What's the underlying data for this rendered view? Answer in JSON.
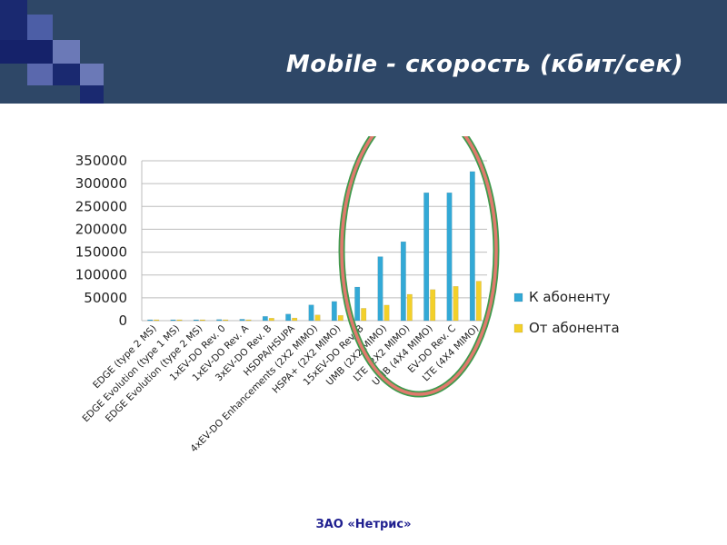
{
  "slide": {
    "title": "Mobile - скорость (кбит/сек)",
    "footer": "ЗАО «Нетрис»",
    "colors": {
      "header": "#2e4767",
      "accent": "#1f1f8f",
      "squares_dark": "#1a2970",
      "squares_light": "#6b79b7",
      "ellipse_outer": "#3f9a4d",
      "ellipse_inner": "#e07a6d"
    }
  },
  "chart_data": {
    "type": "bar",
    "title": "",
    "xlabel": "",
    "ylabel": "",
    "ylim": [
      0,
      350000
    ],
    "yticks": [
      "350000",
      "300000",
      "250000",
      "200000",
      "150000",
      "100000",
      "50000",
      "0"
    ],
    "grid": true,
    "legend_position": "right",
    "categories": [
      "EDGE (type 2 MS)",
      "EDGE Evolution (type 1 MS)",
      "EDGE Evolution (type 2 MS)",
      "1xEV-DO Rev. 0",
      "1xEV-DO Rev. A",
      "3xEV-DO Rev. B",
      "HSDPA/HSUPA",
      "4xEV-DO Enhancements (2X2 MIMO)",
      "HSPA+ (2X2 MIMO)",
      "15xEV-DO Rev. B",
      "UMB (2X2 MIMO)",
      "LTE (2X2 MIMO)",
      "UMB (4X4 MIMO)",
      "EV-DO Rev. C",
      "LTE (4X4 MIMO)"
    ],
    "series": [
      {
        "name": "К абоненту",
        "color": "#33a9d6",
        "values": [
          474,
          1184,
          1894,
          2458,
          3100,
          9300,
          14400,
          34400,
          42000,
          73500,
          140000,
          172800,
          280000,
          280000,
          326400
        ]
      },
      {
        "name": "От абонента",
        "color": "#f3d02a",
        "values": [
          474,
          474,
          947,
          153,
          1800,
          5400,
          5760,
          12400,
          11500,
          27000,
          34000,
          57600,
          68000,
          75000,
          86400
        ]
      }
    ]
  }
}
